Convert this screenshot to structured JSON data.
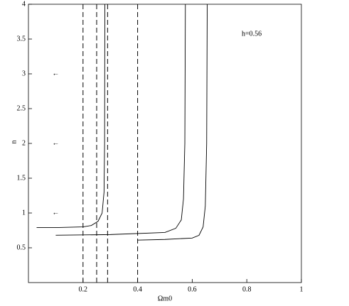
{
  "chart_data": {
    "type": "line",
    "xlabel": "Ωm0",
    "ylabel": "n",
    "annotation": "h=0.56",
    "xlim": [
      0,
      1
    ],
    "ylim": [
      0,
      4
    ],
    "xticks": [
      0.2,
      0.4,
      0.6,
      0.8,
      1
    ],
    "yticks": [
      0.5,
      1,
      1.5,
      2,
      2.5,
      3,
      3.5,
      4
    ],
    "vlines": [
      0.2,
      0.25,
      0.29,
      0.4
    ],
    "arrow_symbol": "←",
    "arrow_points": {
      "x": [
        0.1,
        0.1,
        0.1
      ],
      "y": [
        1,
        2,
        3
      ]
    },
    "color": "#000000",
    "series": [
      {
        "x": [
          0.28,
          0.279,
          0.277,
          0.27,
          0.255,
          0.23,
          0.2,
          0.1,
          0.03
        ],
        "values": [
          4,
          2,
          1.3,
          1.0,
          0.88,
          0.82,
          0.8,
          0.79,
          0.79
        ]
      },
      {
        "x": [
          0.575,
          0.573,
          0.568,
          0.56,
          0.54,
          0.5,
          0.3,
          0.1
        ],
        "values": [
          4,
          2,
          1.2,
          0.9,
          0.78,
          0.72,
          0.69,
          0.68
        ]
      },
      {
        "x": [
          0.655,
          0.653,
          0.648,
          0.64,
          0.625,
          0.6,
          0.5,
          0.4
        ],
        "values": [
          4,
          2,
          1.1,
          0.8,
          0.68,
          0.64,
          0.62,
          0.61
        ]
      }
    ]
  }
}
